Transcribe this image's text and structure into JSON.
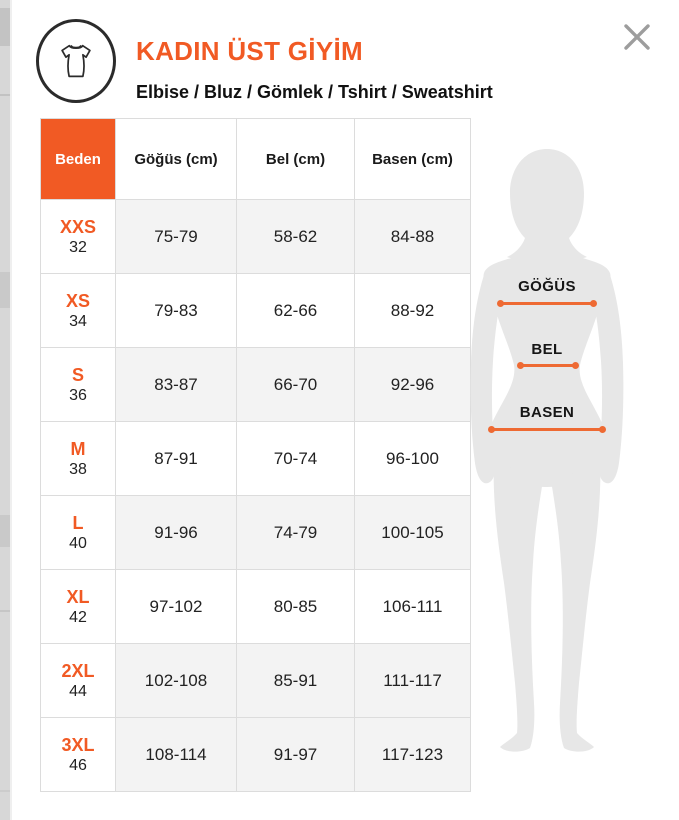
{
  "header": {
    "title": "KADIN ÜST GİYİM",
    "subtitle": "Elbise / Bluz / Gömlek / Tshirt / Sweatshirt"
  },
  "table": {
    "columns": [
      "Beden",
      "Göğüs (cm)",
      "Bel (cm)",
      "Basen (cm)"
    ],
    "rows": [
      {
        "size": "XXS",
        "number": "32",
        "chest": "75-79",
        "waist": "58-62",
        "hip": "84-88",
        "shaded": true
      },
      {
        "size": "XS",
        "number": "34",
        "chest": "79-83",
        "waist": "62-66",
        "hip": "88-92",
        "shaded": false
      },
      {
        "size": "S",
        "number": "36",
        "chest": "83-87",
        "waist": "66-70",
        "hip": "92-96",
        "shaded": true
      },
      {
        "size": "M",
        "number": "38",
        "chest": "87-91",
        "waist": "70-74",
        "hip": "96-100",
        "shaded": false
      },
      {
        "size": "L",
        "number": "40",
        "chest": "91-96",
        "waist": "74-79",
        "hip": "100-105",
        "shaded": true
      },
      {
        "size": "XL",
        "number": "42",
        "chest": "97-102",
        "waist": "80-85",
        "hip": "106-111",
        "shaded": false
      },
      {
        "size": "2XL",
        "number": "44",
        "chest": "102-108",
        "waist": "85-91",
        "hip": "111-117",
        "shaded": true
      },
      {
        "size": "3XL",
        "number": "46",
        "chest": "108-114",
        "waist": "91-97",
        "hip": "117-123",
        "shaded": true
      }
    ]
  },
  "diagram": {
    "labels": {
      "chest": "GÖĞÜS",
      "waist": "BEL",
      "hip": "BASEN"
    }
  },
  "colors": {
    "accent_orange": "#F15A24",
    "measure_line_orange": "#EE6A33",
    "row_alt_gray": "#F3F3F3",
    "table_border": "#DCDCDC",
    "silhouette_gray": "#E7E7E7",
    "close_icon_gray": "#9D9D9D"
  }
}
